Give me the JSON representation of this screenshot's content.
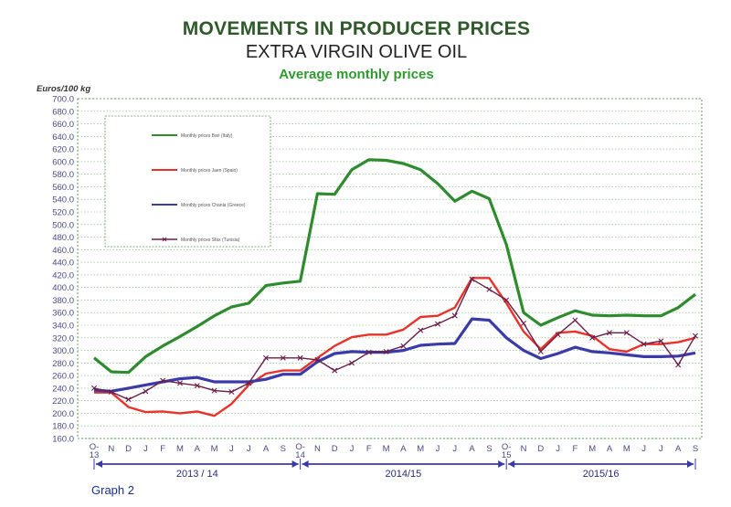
{
  "chart_data": {
    "type": "line",
    "title": "MOVEMENTS IN PRODUCER PRICES",
    "subtitle": "EXTRA VIRGIN OLIVE OIL",
    "subtitle2": "Average monthly prices",
    "ylabel": "Euros/100 kg",
    "caption": "Graph 2",
    "ylim": [
      160,
      700
    ],
    "ystep": 20,
    "grid": true,
    "legend_position": "top-left",
    "categories": [
      "O-13",
      "N",
      "D",
      "J",
      "F",
      "M",
      "A",
      "M",
      "J",
      "J",
      "A",
      "S",
      "O-14",
      "N",
      "D",
      "J",
      "F",
      "M",
      "A",
      "M",
      "J",
      "J",
      "A",
      "S",
      "O-15",
      "N",
      "D",
      "J",
      "F",
      "M",
      "A",
      "M",
      "J",
      "J",
      "A",
      "S"
    ],
    "periods": [
      "2013 / 14",
      "2014/15",
      "2015/16"
    ],
    "series": [
      {
        "name": "Monthly prices Bari (Italy)",
        "color": "#2e8b2e",
        "values": [
          288,
          266,
          265,
          290,
          307,
          322,
          338,
          355,
          369,
          375,
          403,
          407,
          410,
          549,
          548,
          587,
          603,
          602,
          597,
          587,
          565,
          537,
          553,
          541,
          468,
          360,
          340,
          352,
          363,
          356,
          355,
          356,
          355,
          355,
          368,
          389
        ]
      },
      {
        "name": "Monthly prices Jaen (Spain)",
        "color": "#e8322a",
        "values": [
          233,
          233,
          210,
          202,
          203,
          200,
          203,
          196,
          215,
          245,
          263,
          268,
          268,
          288,
          307,
          321,
          325,
          325,
          333,
          353,
          355,
          368,
          415,
          415,
          375,
          330,
          302,
          328,
          330,
          323,
          302,
          298,
          310,
          310,
          313,
          320
        ]
      },
      {
        "name": "Monthly prices Chania (Greece)",
        "color": "#3a3aa8",
        "values": [
          237,
          235,
          240,
          245,
          250,
          255,
          257,
          250,
          250,
          250,
          254,
          262,
          262,
          282,
          295,
          298,
          297,
          297,
          300,
          308,
          310,
          311,
          350,
          348,
          320,
          300,
          287,
          295,
          305,
          298,
          296,
          293,
          290,
          290,
          291,
          296
        ]
      },
      {
        "name": "Monthly prices Sfax (Tunisia)",
        "color": "#6a1f4a",
        "values": [
          240,
          234,
          222,
          235,
          252,
          248,
          244,
          236,
          234,
          248,
          288,
          288,
          288,
          285,
          268,
          280,
          297,
          298,
          307,
          332,
          342,
          355,
          413,
          397,
          380,
          343,
          298,
          325,
          348,
          320,
          328,
          328,
          310,
          315,
          277,
          323
        ]
      }
    ]
  }
}
